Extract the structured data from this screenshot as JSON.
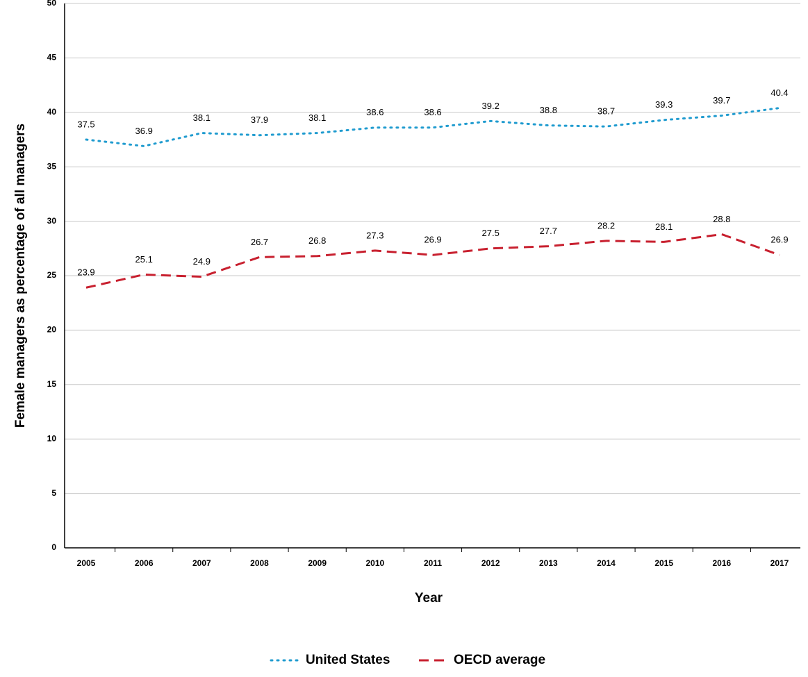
{
  "chart_data": {
    "type": "line",
    "x_label": "Year",
    "y_label": "Female managers as percentage of all managers",
    "categories": [
      "2005",
      "2006",
      "2007",
      "2008",
      "2009",
      "2010",
      "2011",
      "2012",
      "2013",
      "2014",
      "2015",
      "2016",
      "2017"
    ],
    "series": [
      {
        "name": "United States",
        "color": "#1f9bcf",
        "line_style": "dotted",
        "values": [
          37.5,
          36.9,
          38.1,
          37.9,
          38.1,
          38.6,
          38.6,
          39.2,
          38.8,
          38.7,
          39.3,
          39.7,
          40.4
        ]
      },
      {
        "name": "OECD average",
        "color": "#c8202f",
        "line_style": "dashed",
        "values": [
          23.9,
          25.1,
          24.9,
          26.7,
          26.8,
          27.3,
          26.9,
          27.5,
          27.7,
          28.2,
          28.1,
          28.8,
          26.9
        ]
      }
    ],
    "ylim": [
      0,
      50
    ],
    "yticks": [
      0,
      5,
      10,
      15,
      20,
      25,
      30,
      35,
      40,
      45,
      50
    ],
    "grid": true,
    "legend": "bottom"
  }
}
